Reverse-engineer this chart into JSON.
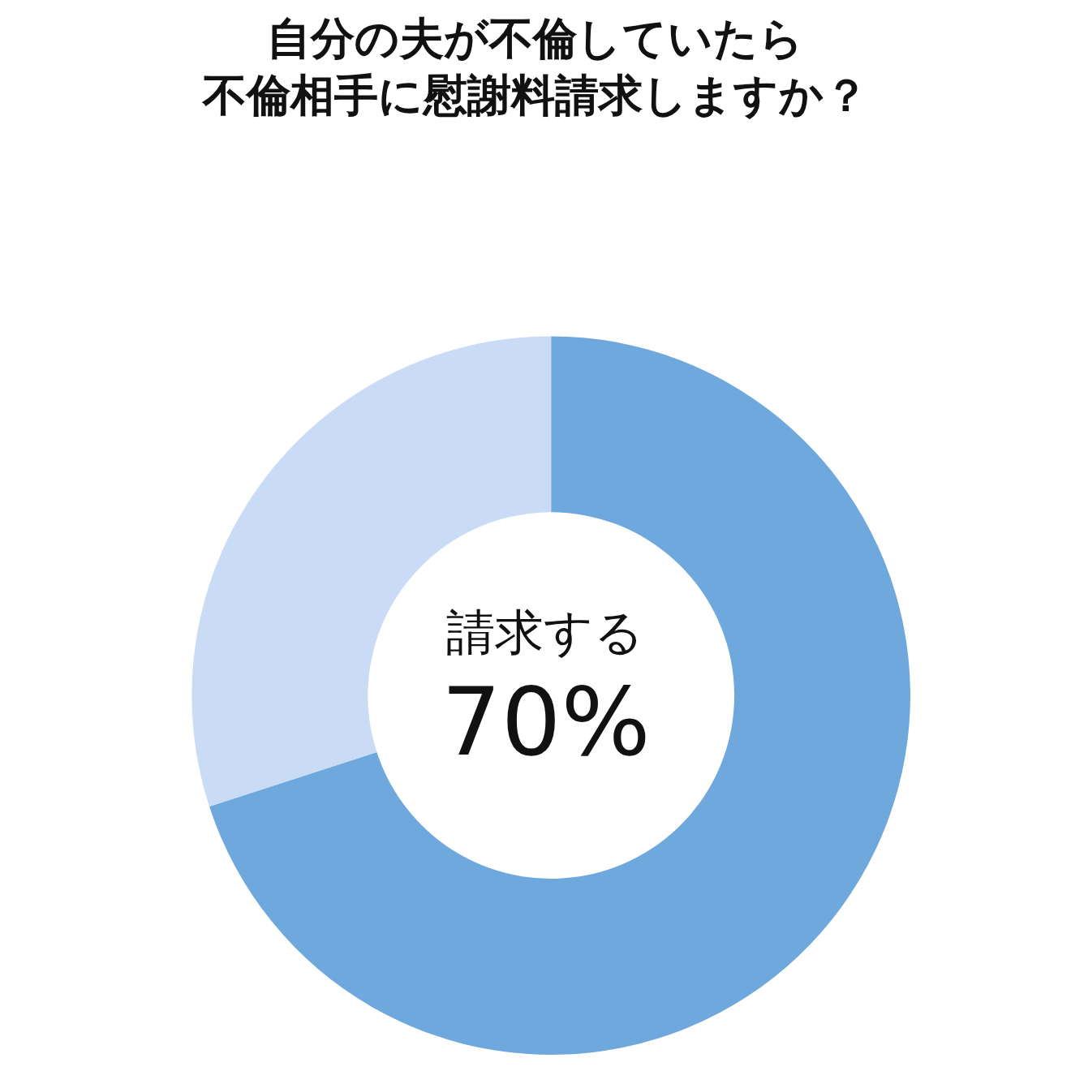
{
  "chart_data": {
    "type": "donut",
    "title": "自分の夫が不倫していたら",
    "subtitle": "不倫相手に慰謝料請求しますか？",
    "categories": [
      "請求する",
      null
    ],
    "values": [
      70,
      30
    ],
    "colors": [
      "#6fa8dc",
      "#c9dbf5"
    ],
    "value_labels": [
      "70%",
      null
    ],
    "legend": false
  }
}
